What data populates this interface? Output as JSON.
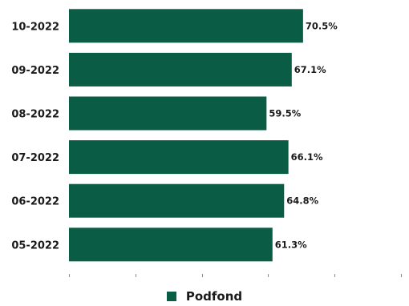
{
  "chart_data": {
    "type": "bar",
    "orientation": "horizontal",
    "categories": [
      "10-2022",
      "09-2022",
      "08-2022",
      "07-2022",
      "06-2022",
      "05-2022"
    ],
    "series": [
      {
        "name": "Podfond",
        "values": [
          70.5,
          67.1,
          59.5,
          66.1,
          64.8,
          61.3
        ],
        "labels": [
          "70.5%",
          "67.1%",
          "59.5%",
          "66.1%",
          "64.8%",
          "61.3%"
        ],
        "color": "#0b5c45"
      }
    ],
    "xlim": [
      0,
      100
    ],
    "grid": false,
    "legend_position": "bottom"
  },
  "legend": {
    "label": "Podfond"
  }
}
